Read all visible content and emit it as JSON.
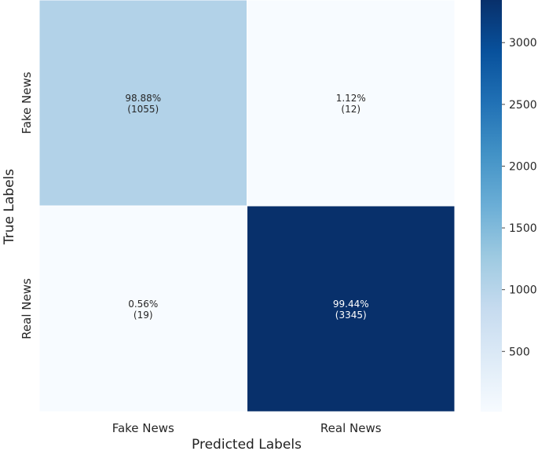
{
  "chart_data": {
    "type": "heatmap",
    "title": "",
    "xlabel": "Predicted Labels",
    "ylabel": "True Labels",
    "x_categories": [
      "Fake News",
      "Real News"
    ],
    "y_categories": [
      "Fake News",
      "Real News"
    ],
    "cells": [
      {
        "row": 0,
        "col": 0,
        "count": 1055,
        "percent_label": "98.88%",
        "count_label": "(1055)"
      },
      {
        "row": 0,
        "col": 1,
        "count": 12,
        "percent_label": "1.12%",
        "count_label": "(12)"
      },
      {
        "row": 1,
        "col": 0,
        "count": 19,
        "percent_label": "0.56%",
        "count_label": "(19)"
      },
      {
        "row": 1,
        "col": 1,
        "count": 3345,
        "percent_label": "99.44%",
        "count_label": "(3345)"
      }
    ],
    "colorbar": {
      "colormap": "Blues",
      "range": [
        12,
        3345
      ],
      "ticks": [
        500,
        1000,
        1500,
        2000,
        2500,
        3000
      ],
      "tick_labels": [
        "500",
        "1000",
        "1500",
        "2000",
        "2500",
        "3000"
      ]
    }
  }
}
